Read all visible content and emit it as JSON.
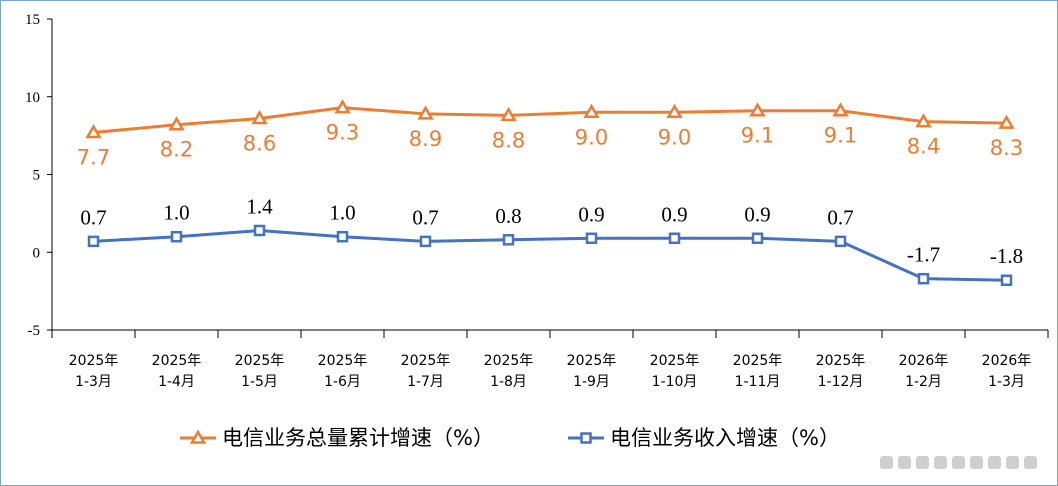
{
  "chart_data": {
    "type": "line",
    "categories": [
      [
        "2025年",
        "1-3月"
      ],
      [
        "2025年",
        "1-4月"
      ],
      [
        "2025年",
        "1-5月"
      ],
      [
        "2025年",
        "1-6月"
      ],
      [
        "2025年",
        "1-7月"
      ],
      [
        "2025年",
        "1-8月"
      ],
      [
        "2025年",
        "1-9月"
      ],
      [
        "2025年",
        "1-10月"
      ],
      [
        "2025年",
        "1-11月"
      ],
      [
        "2025年",
        "1-12月"
      ],
      [
        "2026年",
        "1-2月"
      ],
      [
        "2026年",
        "1-3月"
      ]
    ],
    "ylim": [
      -5,
      15
    ],
    "yticks": [
      -5,
      0,
      5,
      10,
      15
    ],
    "grid": false,
    "legend_position": "bottom",
    "series": [
      {
        "name": "电信业务总量累计增速（%）",
        "color": "#ED7D31",
        "marker": "triangle-open",
        "values": [
          7.7,
          8.2,
          8.6,
          9.3,
          8.9,
          8.8,
          9.0,
          9.0,
          9.1,
          9.1,
          8.4,
          8.3
        ],
        "labels": [
          "7.7",
          "8.2",
          "8.6",
          "9.3",
          "8.9",
          "8.8",
          "9.0",
          "9.0",
          "9.1",
          "9.1",
          "8.4",
          "8.3"
        ]
      },
      {
        "name": "电信业务收入增速（%）",
        "color": "#4472C4",
        "marker": "square-open",
        "values": [
          0.7,
          1.0,
          1.4,
          1.0,
          0.7,
          0.8,
          0.9,
          0.9,
          0.9,
          0.7,
          -1.7,
          -1.8
        ],
        "labels": [
          "0.7",
          "1.0",
          "1.4",
          "1.0",
          "0.7",
          "0.8",
          "0.9",
          "0.9",
          "0.9",
          "0.7",
          "-1.7",
          "-1.8"
        ]
      }
    ]
  }
}
